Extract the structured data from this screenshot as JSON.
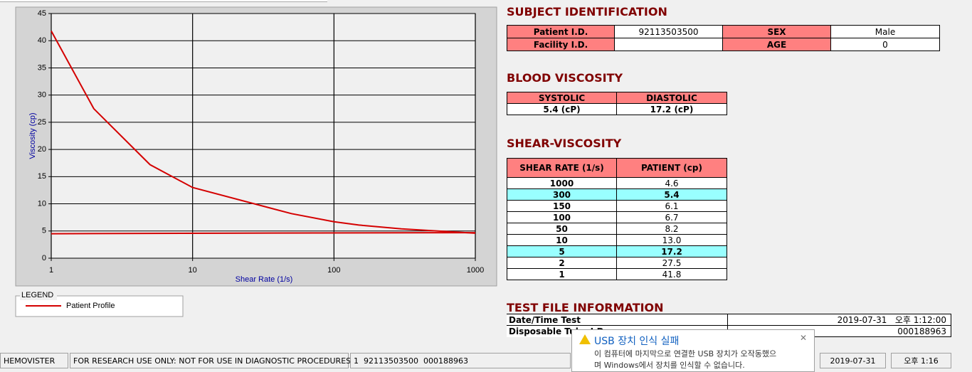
{
  "chart_data": {
    "type": "line",
    "x_label": "Shear Rate (1/s)",
    "y_label": "Viscosity (cp)",
    "log_x": true,
    "grid": true,
    "xlim": [
      1,
      1000
    ],
    "ylim": [
      0,
      45
    ],
    "xticks": [
      1,
      10,
      100,
      1000
    ],
    "yticks": [
      0,
      5,
      10,
      15,
      20,
      25,
      30,
      35,
      40,
      45
    ],
    "legend_title": "LEGEND",
    "series": [
      {
        "name": "Patient Profile",
        "color": "#d40000",
        "x": [
          1,
          2,
          5,
          10,
          50,
          100,
          150,
          300,
          1000
        ],
        "values": [
          41.8,
          27.5,
          17.2,
          13.0,
          8.2,
          6.7,
          6.1,
          5.4,
          4.6
        ]
      },
      {
        "color": "#d40000",
        "x": [
          1,
          15,
          1000
        ],
        "values": [
          4.5,
          4.6,
          4.7
        ]
      }
    ]
  },
  "subject": {
    "title": "SUBJECT IDENTIFICATION",
    "rows": [
      [
        "Patient I.D.",
        "92113503500",
        "SEX",
        "Male"
      ],
      [
        "Facility I.D.",
        null,
        "AGE",
        "0"
      ]
    ]
  },
  "blood": {
    "title": "BLOOD VISCOSITY",
    "headers": [
      "SYSTOLIC",
      "DIASTOLIC"
    ],
    "values": [
      "5.4 (cP)",
      "17.2 (cP)"
    ]
  },
  "shear": {
    "title": "SHEAR-VISCOSITY",
    "headers": [
      "SHEAR RATE (1/s)",
      "PATIENT (cp)"
    ],
    "rows": [
      {
        "rate": "1000",
        "patient": "4.6"
      },
      {
        "rate": "300",
        "patient": "5.4",
        "highlight": true
      },
      {
        "rate": "150",
        "patient": "6.1"
      },
      {
        "rate": "100",
        "patient": "6.7"
      },
      {
        "rate": "50",
        "patient": "8.2"
      },
      {
        "rate": "10",
        "patient": "13.0"
      },
      {
        "rate": "5",
        "patient": "17.2",
        "highlight": true
      },
      {
        "rate": "2",
        "patient": "27.5"
      },
      {
        "rate": "1",
        "patient": "41.8"
      }
    ]
  },
  "test_file": {
    "title": "TEST FILE INFORMATION",
    "rows": [
      [
        "Date/Time Test",
        "2019-07-31   오후 1:12:00"
      ],
      [
        "Disposable Tube I.D.",
        "000188963"
      ]
    ]
  },
  "popup": {
    "title": "USB 장치 인식 실패",
    "lines": [
      "이 컴퓨터에 마지막으로 연결한 USB 장치가 오작동했으",
      "며 Windows에서 장치를 인식할 수 없습니다."
    ]
  },
  "status_bar": [
    "HEMOVISTER",
    "FOR RESEARCH USE ONLY: NOT FOR USE IN DIAGNOSTIC PROCEDURES",
    "1  92113503500  000188963",
    "2019-07-31",
    "오후 1:16"
  ]
}
